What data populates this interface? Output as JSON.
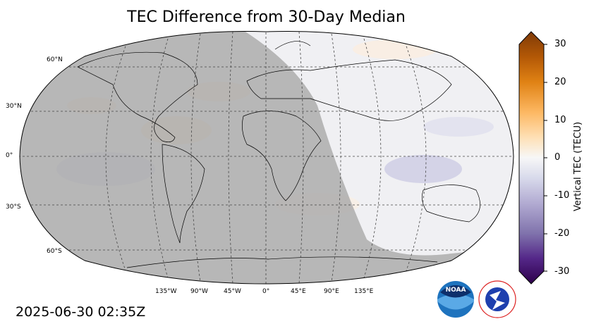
{
  "title": "TEC Difference from 30-Day Median",
  "timestamp": "2025-06-30 02:35Z",
  "colorbar": {
    "label": "Vertical TEC (TECU)",
    "ticks": [
      "30",
      "20",
      "10",
      "0",
      "-10",
      "-20",
      "-30"
    ],
    "range": [
      -30,
      30
    ],
    "colors_top_to_bottom": [
      "#7f3b08",
      "#b35806",
      "#e08214",
      "#fdb863",
      "#fee0b6",
      "#f7f7f7",
      "#d8daeb",
      "#b2abd2",
      "#8073ac",
      "#542788",
      "#2d004b"
    ]
  },
  "map": {
    "projection": "Robinson",
    "latitude_labels": [
      "60°N",
      "30°N",
      "0°",
      "30°S",
      "60°S"
    ],
    "longitude_labels": [
      "135°W",
      "90°W",
      "45°W",
      "0°",
      "45°E",
      "90°E",
      "135°E"
    ],
    "night_shading_color": "#a9a9a9",
    "grid": true
  },
  "logos": {
    "noaa_text": "NOAA",
    "nws_text": "NATIONAL WEATHER SERVICE"
  }
}
